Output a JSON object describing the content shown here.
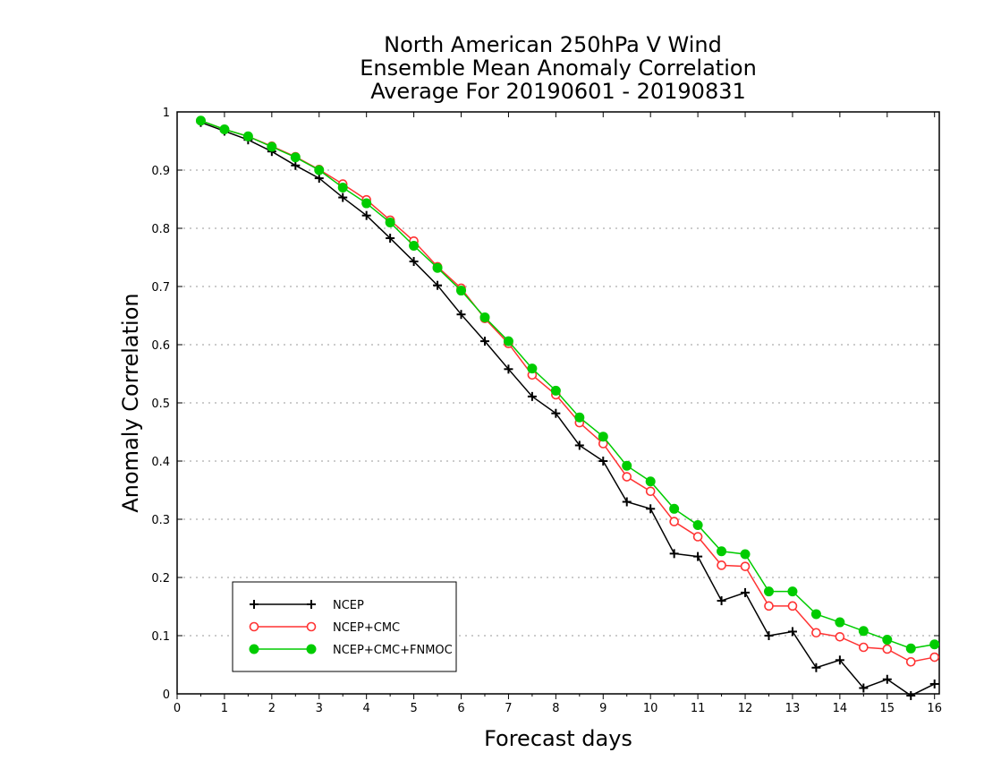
{
  "chart_data": {
    "type": "line",
    "title_lines": [
      "North American 250hPa V Wind",
      "Ensemble Mean Anomaly Correlation",
      "Average For 20190601 - 20190831"
    ],
    "xlabel": "Forecast days",
    "ylabel": "Anomaly Correlation",
    "xlim": [
      0,
      16.1
    ],
    "ylim": [
      0,
      1
    ],
    "x_ticks": [
      "0",
      "1",
      "2",
      "3",
      "4",
      "5",
      "6",
      "7",
      "8",
      "9",
      "10",
      "11",
      "12",
      "13",
      "14",
      "15",
      "16"
    ],
    "y_ticks": [
      "0",
      "0.1",
      "0.2",
      "0.3",
      "0.4",
      "0.5",
      "0.6",
      "0.7",
      "0.8",
      "0.9",
      "1"
    ],
    "grid": true,
    "legend_position": "bottom-left",
    "x": [
      0.5,
      1,
      1.5,
      2,
      2.5,
      3,
      3.5,
      4,
      4.5,
      5,
      5.5,
      6,
      6.5,
      7,
      7.5,
      8,
      8.5,
      9,
      9.5,
      10,
      10.5,
      11,
      11.5,
      12,
      12.5,
      13,
      13.5,
      14,
      14.5,
      15,
      15.5,
      16
    ],
    "series": [
      {
        "name": "NCEP",
        "color": "#000000",
        "marker": "plus",
        "values": [
          0.982,
          0.967,
          0.952,
          0.932,
          0.908,
          0.886,
          0.853,
          0.822,
          0.783,
          0.743,
          0.702,
          0.652,
          0.606,
          0.558,
          0.511,
          0.482,
          0.427,
          0.4,
          0.33,
          0.318,
          0.241,
          0.236,
          0.16,
          0.174,
          0.1,
          0.107,
          0.045,
          0.058,
          0.01,
          0.025,
          -0.003,
          0.017
        ]
      },
      {
        "name": "NCEP+CMC",
        "color": "#ff3333",
        "marker": "open-circle",
        "values": [
          0.985,
          0.97,
          0.958,
          0.941,
          0.923,
          0.901,
          0.876,
          0.849,
          0.814,
          0.778,
          0.734,
          0.697,
          0.645,
          0.602,
          0.548,
          0.514,
          0.466,
          0.43,
          0.373,
          0.348,
          0.296,
          0.27,
          0.221,
          0.219,
          0.151,
          0.151,
          0.105,
          0.098,
          0.08,
          0.077,
          0.055,
          0.063
        ]
      },
      {
        "name": "NCEP+CMC+FNMOC",
        "color": "#00cc00",
        "marker": "filled-circle",
        "values": [
          0.985,
          0.97,
          0.958,
          0.94,
          0.922,
          0.9,
          0.87,
          0.843,
          0.81,
          0.77,
          0.732,
          0.693,
          0.647,
          0.606,
          0.559,
          0.521,
          0.475,
          0.442,
          0.392,
          0.365,
          0.318,
          0.29,
          0.245,
          0.24,
          0.176,
          0.176,
          0.137,
          0.123,
          0.108,
          0.093,
          0.078,
          0.085
        ]
      }
    ]
  }
}
